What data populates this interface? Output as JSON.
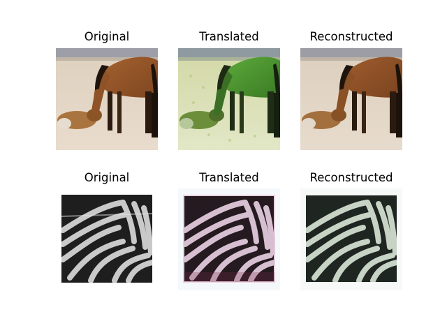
{
  "figure": {
    "rows": [
      {
        "subject": "horse",
        "panels": [
          {
            "title": "Original"
          },
          {
            "title": "Translated"
          },
          {
            "title": "Reconstructed"
          }
        ]
      },
      {
        "subject": "zebra",
        "panels": [
          {
            "title": "Original"
          },
          {
            "title": "Translated"
          },
          {
            "title": "Reconstructed"
          }
        ]
      }
    ]
  }
}
